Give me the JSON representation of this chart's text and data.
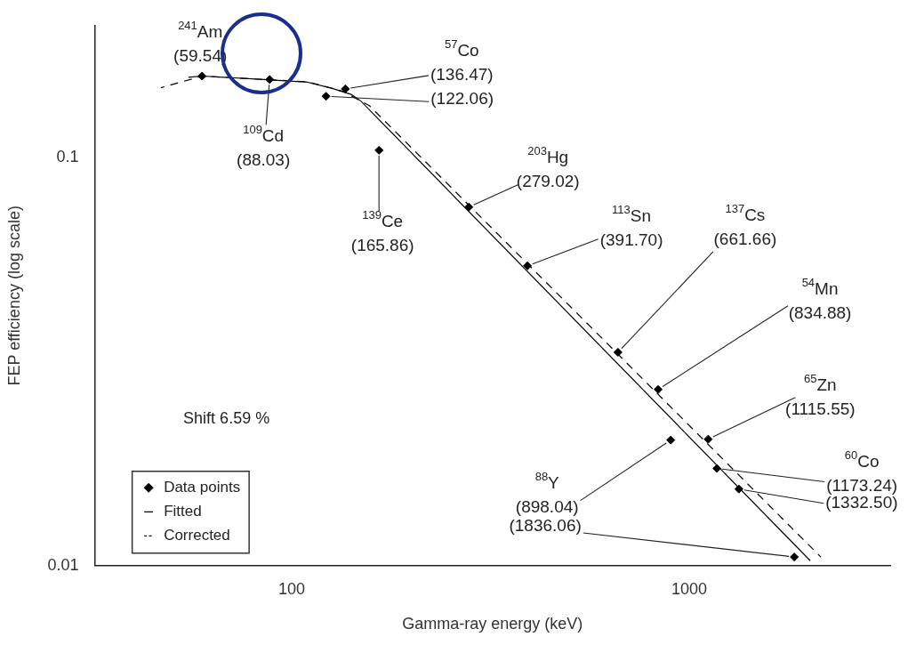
{
  "chart_data": {
    "type": "scatter",
    "xlabel": "Gamma-ray energy (keV)",
    "ylabel": "FEP efficiency (log scale)",
    "log": "xy",
    "xlim": [
      32,
      3200
    ],
    "ylim": [
      0.01,
      0.21
    ],
    "xticks": [
      100,
      1000
    ],
    "yticks": [
      0.01,
      0.1
    ],
    "legend": "bottom left",
    "series": [
      {
        "name": "Data points",
        "color": "#000000",
        "marker": "diamond",
        "x": [
          59.54,
          88.03,
          136.47,
          122.06,
          165.86,
          279.02,
          391.7,
          661.66,
          834.88,
          898.04,
          1115.55,
          1173.24,
          1332.5,
          1836.06
        ],
        "values": [
          0.158,
          0.155,
          0.147,
          0.141,
          0.104,
          0.0755,
          0.0542,
          0.0333,
          0.027,
          0.0203,
          0.0204,
          0.0173,
          0.0154,
          0.0105
        ]
      },
      {
        "name": "Fitted",
        "type": "line",
        "color": "#000000",
        "line_style": "solid",
        "x": [
          55,
          59.6,
          85.1,
          109.8,
          126,
          141.7,
          149.1,
          2014
        ],
        "values": [
          0.157,
          0.158,
          0.155,
          0.1526,
          0.1476,
          0.1423,
          0.1374,
          0.01028
        ]
      },
      {
        "name": "Corrected",
        "type": "line",
        "color": "#000000",
        "line_style": "dashed",
        "x": [
          46.9,
          59.6,
          85.1,
          109.8,
          134.6,
          156.9,
          2141
        ],
        "values": [
          0.148,
          0.158,
          0.155,
          0.153,
          0.145,
          0.1337,
          0.0105
        ]
      }
    ],
    "annotations": [
      {
        "text": "$^{241}$Am\n(59.54)",
        "x": 59.54,
        "y": 0.158
      },
      {
        "text": "$^{109}$Cd\n(88.03)",
        "x": 88.03,
        "y": 0.155
      },
      {
        "text": "$^{57}$Co\n(136.47)",
        "x": 136.47,
        "y": 0.147
      },
      {
        "text": "(122.06)",
        "x": 122.06,
        "y": 0.141
      },
      {
        "text": "$^{139}$Ce\n(165.86)",
        "x": 165.86,
        "y": 0.104
      },
      {
        "text": "$^{203}$Hg\n(279.02)",
        "x": 279.02,
        "y": 0.0755
      },
      {
        "text": "$^{113}$Sn\n(391.70)",
        "x": 391.7,
        "y": 0.0542
      },
      {
        "text": "$^{137}$Cs\n(661.66)",
        "x": 661.66,
        "y": 0.0333
      },
      {
        "text": "$^{54}$Mn\n(834.88)",
        "x": 834.88,
        "y": 0.027
      },
      {
        "text": "$^{88}$Y\n(898.04)",
        "x": 898.04,
        "y": 0.0203
      },
      {
        "text": "$^{65}$Zn\n(1115.55)",
        "x": 1115.55,
        "y": 0.0204
      },
      {
        "text": "$^{60}$Co\n(1173.24)",
        "x": 1173.24,
        "y": 0.0173
      },
      {
        "text": "(1332.50)",
        "x": 1332.5,
        "y": 0.0154
      },
      {
        "text": "(1836.06)",
        "x": 1836.06,
        "y": 0.0105
      },
      "Shift 6.59 %"
    ]
  }
}
